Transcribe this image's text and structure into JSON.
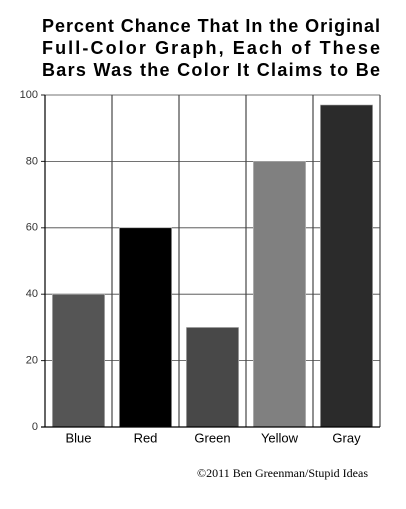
{
  "chart_data": {
    "type": "bar",
    "title": [
      "Percent Chance That In the Original",
      "Full-Color Graph, Each of These",
      "Bars Was the Color It Claims to Be"
    ],
    "categories": [
      "Blue",
      "Red",
      "Green",
      "Yellow",
      "Gray"
    ],
    "values": [
      40,
      60,
      30,
      80,
      97
    ],
    "colors": [
      "#555555",
      "#000000",
      "#484848",
      "#808080",
      "#2b2b2b"
    ],
    "ylim": [
      0,
      100
    ],
    "yticks": [
      0,
      20,
      40,
      60,
      80,
      100
    ],
    "grid": true,
    "credit": "©2011 Ben Greenman/Stupid Ideas"
  }
}
